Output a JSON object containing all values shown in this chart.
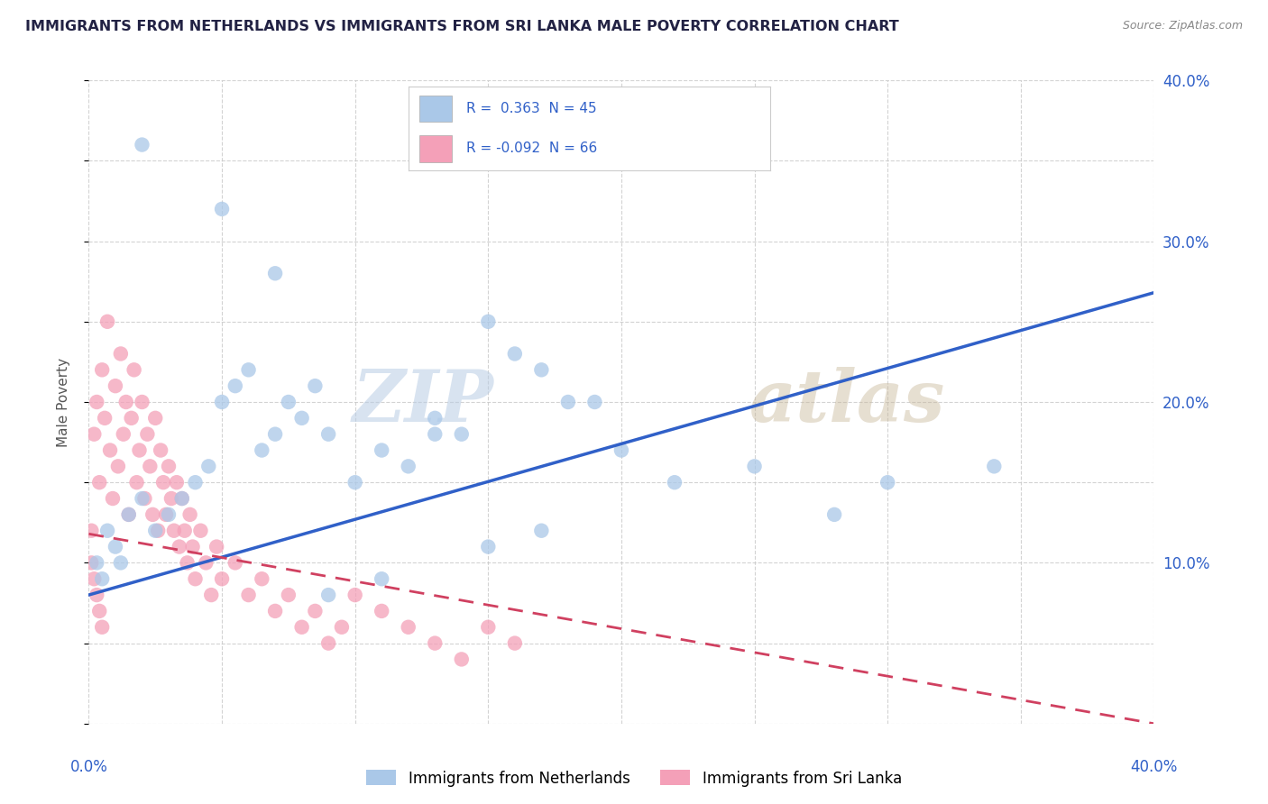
{
  "title": "IMMIGRANTS FROM NETHERLANDS VS IMMIGRANTS FROM SRI LANKA MALE POVERTY CORRELATION CHART",
  "source": "Source: ZipAtlas.com",
  "ylabel": "Male Poverty",
  "xlim": [
    0.0,
    0.4
  ],
  "ylim": [
    0.0,
    0.4
  ],
  "x_ticks": [
    0.0,
    0.05,
    0.1,
    0.15,
    0.2,
    0.25,
    0.3,
    0.35,
    0.4
  ],
  "y_ticks": [
    0.0,
    0.05,
    0.1,
    0.15,
    0.2,
    0.25,
    0.3,
    0.35,
    0.4
  ],
  "netherlands_color": "#aac8e8",
  "sri_lanka_color": "#f4a0b8",
  "netherlands_line_color": "#3060c8",
  "sri_lanka_line_color": "#d04060",
  "netherlands_R": 0.363,
  "netherlands_N": 45,
  "sri_lanka_R": -0.092,
  "sri_lanka_N": 66,
  "background_color": "#ffffff",
  "grid_color": "#c8c8c8",
  "neth_line_y0": 0.08,
  "neth_line_y1": 0.268,
  "sl_line_y0": 0.118,
  "sl_line_y1": 0.0,
  "netherlands_x": [
    0.003,
    0.005,
    0.007,
    0.01,
    0.012,
    0.015,
    0.02,
    0.025,
    0.03,
    0.035,
    0.04,
    0.045,
    0.05,
    0.055,
    0.06,
    0.065,
    0.07,
    0.075,
    0.08,
    0.085,
    0.09,
    0.1,
    0.11,
    0.12,
    0.13,
    0.14,
    0.15,
    0.16,
    0.17,
    0.18,
    0.2,
    0.22,
    0.25,
    0.28,
    0.3,
    0.34,
    0.05,
    0.07,
    0.09,
    0.11,
    0.13,
    0.15,
    0.17,
    0.19,
    0.02
  ],
  "netherlands_y": [
    0.1,
    0.09,
    0.12,
    0.11,
    0.1,
    0.13,
    0.14,
    0.12,
    0.13,
    0.14,
    0.15,
    0.16,
    0.2,
    0.21,
    0.22,
    0.17,
    0.18,
    0.2,
    0.19,
    0.21,
    0.18,
    0.15,
    0.17,
    0.16,
    0.19,
    0.18,
    0.25,
    0.23,
    0.22,
    0.2,
    0.17,
    0.15,
    0.16,
    0.13,
    0.15,
    0.16,
    0.32,
    0.28,
    0.08,
    0.09,
    0.18,
    0.11,
    0.12,
    0.2,
    0.36
  ],
  "sri_lanka_x": [
    0.001,
    0.002,
    0.003,
    0.004,
    0.005,
    0.006,
    0.007,
    0.008,
    0.009,
    0.01,
    0.011,
    0.012,
    0.013,
    0.014,
    0.015,
    0.016,
    0.017,
    0.018,
    0.019,
    0.02,
    0.021,
    0.022,
    0.023,
    0.024,
    0.025,
    0.026,
    0.027,
    0.028,
    0.029,
    0.03,
    0.031,
    0.032,
    0.033,
    0.034,
    0.035,
    0.036,
    0.037,
    0.038,
    0.039,
    0.04,
    0.042,
    0.044,
    0.046,
    0.048,
    0.05,
    0.055,
    0.06,
    0.065,
    0.07,
    0.075,
    0.08,
    0.085,
    0.09,
    0.095,
    0.1,
    0.11,
    0.12,
    0.13,
    0.14,
    0.15,
    0.16,
    0.001,
    0.002,
    0.003,
    0.004,
    0.005
  ],
  "sri_lanka_y": [
    0.12,
    0.18,
    0.2,
    0.15,
    0.22,
    0.19,
    0.25,
    0.17,
    0.14,
    0.21,
    0.16,
    0.23,
    0.18,
    0.2,
    0.13,
    0.19,
    0.22,
    0.15,
    0.17,
    0.2,
    0.14,
    0.18,
    0.16,
    0.13,
    0.19,
    0.12,
    0.17,
    0.15,
    0.13,
    0.16,
    0.14,
    0.12,
    0.15,
    0.11,
    0.14,
    0.12,
    0.1,
    0.13,
    0.11,
    0.09,
    0.12,
    0.1,
    0.08,
    0.11,
    0.09,
    0.1,
    0.08,
    0.09,
    0.07,
    0.08,
    0.06,
    0.07,
    0.05,
    0.06,
    0.08,
    0.07,
    0.06,
    0.05,
    0.04,
    0.06,
    0.05,
    0.1,
    0.09,
    0.08,
    0.07,
    0.06
  ]
}
